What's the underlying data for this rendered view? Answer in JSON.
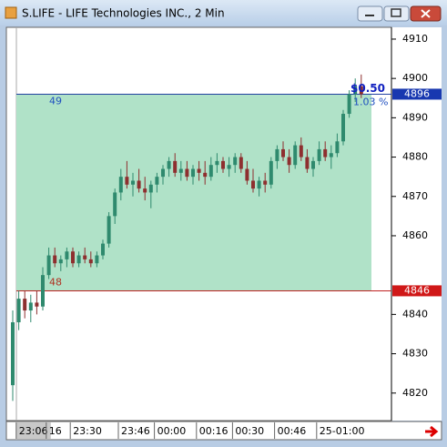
{
  "window": {
    "title": "S.LIFE - LIFE Technologies INC., 2 Min"
  },
  "chart_data": {
    "type": "candlestick",
    "open": [
      4822,
      4838,
      4844,
      4841,
      4843,
      4842,
      4850,
      4855,
      4853,
      4854,
      4856,
      4853,
      4855,
      4854,
      4853,
      4855,
      4858,
      4865,
      4871,
      4875,
      4873,
      4874,
      4872,
      4871,
      4873,
      4875,
      4877,
      4879,
      4876,
      4877,
      4875,
      4877,
      4876,
      4875,
      4878,
      4879,
      4877,
      4878,
      4880,
      4877,
      4874,
      4872,
      4874,
      4873,
      4879,
      4882,
      4880,
      4878,
      4883,
      4880,
      4877,
      4879,
      4882,
      4880,
      4881,
      4884,
      4891,
      4896,
      4898
    ],
    "high": [
      4841,
      4846,
      4846,
      4845,
      4846,
      4852,
      4857,
      4857,
      4855,
      4857,
      4857,
      4856,
      4857,
      4856,
      4856,
      4859,
      4866,
      4872,
      4877,
      4879,
      4876,
      4877,
      4875,
      4874,
      4876,
      4878,
      4880,
      4881,
      4879,
      4879,
      4878,
      4879,
      4879,
      4880,
      4881,
      4880,
      4880,
      4881,
      4881,
      4879,
      4877,
      4875,
      4876,
      4880,
      4883,
      4884,
      4882,
      4884,
      4885,
      4882,
      4880,
      4884,
      4884,
      4883,
      4886,
      4892,
      4897,
      4900,
      4901
    ],
    "low": [
      4818,
      4836,
      4839,
      4838,
      4840,
      4841,
      4849,
      4852,
      4851,
      4852,
      4852,
      4852,
      4853,
      4852,
      4852,
      4854,
      4857,
      4863,
      4869,
      4872,
      4870,
      4871,
      4869,
      4867,
      4871,
      4873,
      4875,
      4875,
      4874,
      4874,
      4873,
      4874,
      4873,
      4874,
      4876,
      4876,
      4875,
      4876,
      4876,
      4873,
      4871,
      4870,
      4871,
      4872,
      4877,
      4879,
      4876,
      4877,
      4879,
      4876,
      4875,
      4878,
      4879,
      4877,
      4880,
      4883,
      4890,
      4894,
      4895
    ],
    "close": [
      4838,
      4844,
      4841,
      4843,
      4842,
      4850,
      4855,
      4853,
      4854,
      4856,
      4853,
      4855,
      4854,
      4853,
      4855,
      4858,
      4865,
      4871,
      4875,
      4873,
      4874,
      4872,
      4871,
      4873,
      4875,
      4877,
      4879,
      4876,
      4877,
      4875,
      4877,
      4876,
      4875,
      4878,
      4879,
      4877,
      4878,
      4880,
      4877,
      4874,
      4872,
      4874,
      4873,
      4879,
      4882,
      4880,
      4878,
      4883,
      4880,
      4877,
      4879,
      4882,
      4880,
      4881,
      4884,
      4891,
      4896,
      4898,
      4896
    ],
    "up_color": "#2f8a6e",
    "down_color": "#8e2f2f",
    "x_labels": [
      {
        "value": 3,
        "label": "23:06"
      },
      {
        "value": 8,
        "label": "16"
      },
      {
        "value": 12,
        "label": "23:30"
      },
      {
        "value": 20,
        "label": "23:46"
      },
      {
        "value": 26,
        "label": "00:00"
      },
      {
        "value": 33,
        "label": "00:16"
      },
      {
        "value": 39,
        "label": "00:30"
      },
      {
        "value": 46,
        "label": "00:46"
      },
      {
        "value": 53,
        "label": "25-01:00"
      }
    ],
    "ylim": [
      4813,
      4913
    ],
    "yticks": [
      4820,
      4830,
      4840,
      4860,
      4870,
      4880,
      4890,
      4900,
      4910
    ],
    "box": {
      "high": 4896,
      "low": 4846,
      "high_label": "49",
      "low_label": "48",
      "color": "#b0e2c8"
    },
    "annotations": [
      "$0.50",
      "1.03 %"
    ]
  }
}
